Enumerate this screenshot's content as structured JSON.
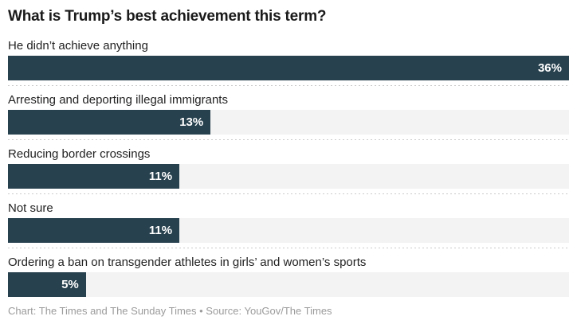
{
  "chart_data": {
    "type": "bar",
    "orientation": "horizontal",
    "title": "What is Trump’s best achievement this term?",
    "categories": [
      "He didn’t achieve anything",
      "Arresting and deporting illegal immigrants",
      "Reducing border crossings",
      "Not sure",
      "Ordering a ban on transgender athletes in girls’ and women’s sports"
    ],
    "values": [
      36,
      13,
      11,
      11,
      5
    ],
    "value_labels": [
      "36%",
      "13%",
      "11%",
      "11%",
      "5%"
    ],
    "unit": "%",
    "xlim": [
      0,
      36
    ],
    "grid": false,
    "legend": "none",
    "data_labels_position": "inside-end",
    "footer": "Chart: The Times and The Sunday Times • Source: YouGov/The Times"
  },
  "colors": {
    "bar": "#27414e",
    "track": "#f3f3f3",
    "title_text": "#1a1a1a",
    "label_text": "#222222",
    "value_text": "#ffffff",
    "separator": "#cbcbcb",
    "footer_text": "#9b9b9b",
    "background": "#ffffff"
  }
}
